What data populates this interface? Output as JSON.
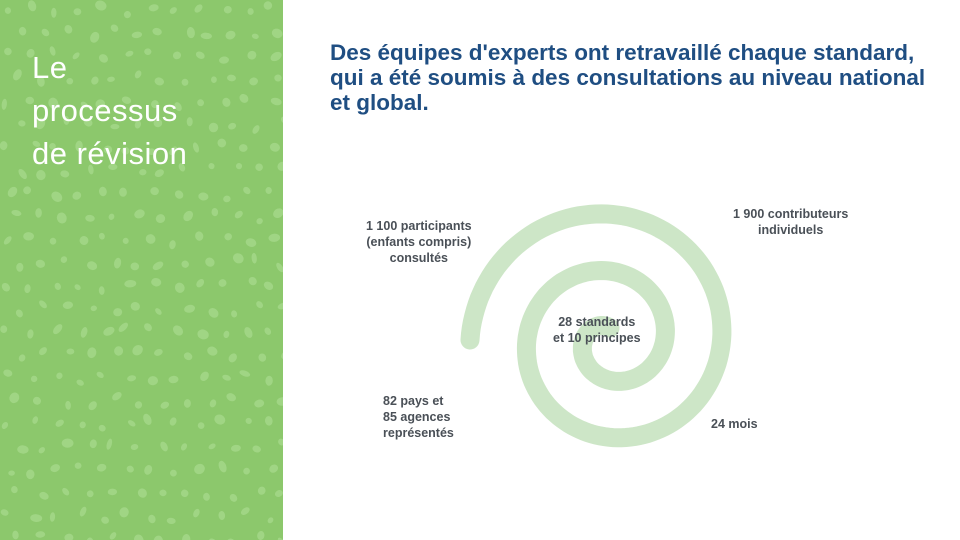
{
  "sidebar": {
    "title_lines": [
      "Le",
      "processus",
      "de révision"
    ],
    "background_color": "#8cc86c"
  },
  "headline": "Des équipes d'experts ont retravaillé chaque standard, qui a été soumis à des consultations au niveau national et global.",
  "stats": {
    "participants": "1 100 participants\n(enfants compris)\nconsultés",
    "contributors": "1 900 contributeurs\nindividuels",
    "standards": "28 standards\net 10 principes",
    "countries": "82 pays et\n85 agences\nreprésentés",
    "duration": "24 mois"
  },
  "colors": {
    "headline": "#1f4e82",
    "spiral": "#cde6c7",
    "stat_text": "#4a5057"
  }
}
